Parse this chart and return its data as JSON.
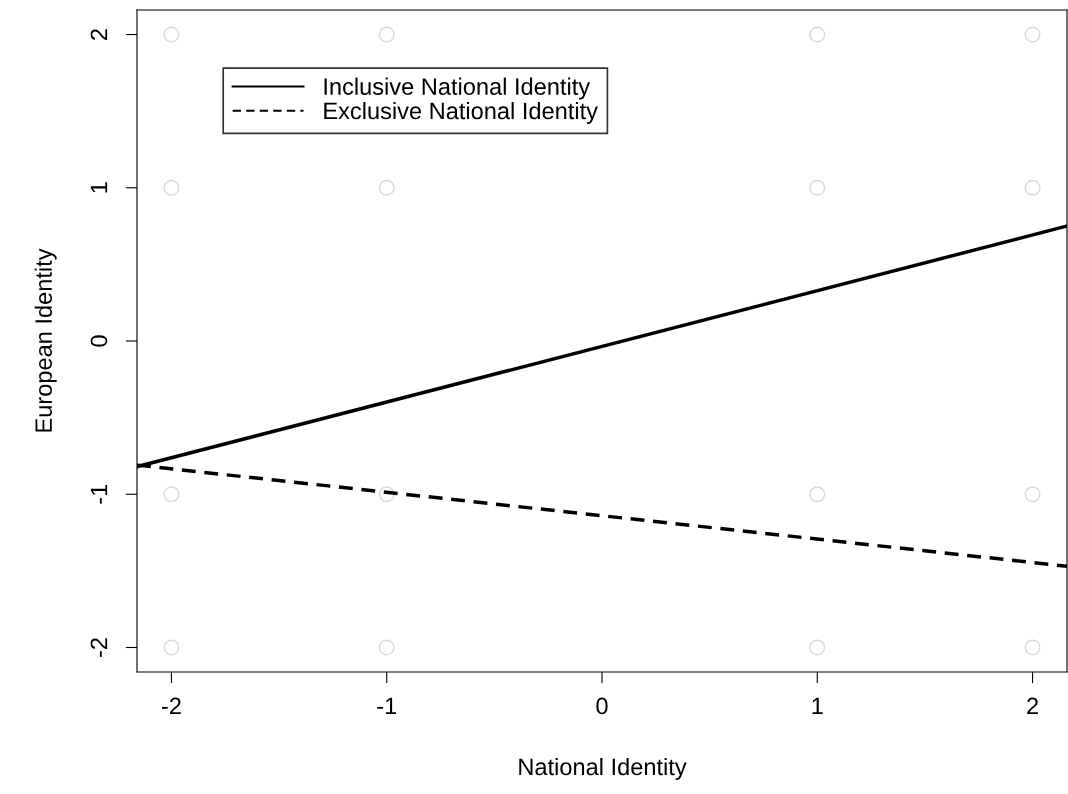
{
  "chart_data": {
    "type": "line",
    "xlabel": "National Identity",
    "ylabel": "European Identity",
    "xlim": [
      -2.16,
      2.16
    ],
    "ylim": [
      -2.16,
      2.16
    ],
    "xticks": [
      -2,
      -1,
      0,
      1,
      2
    ],
    "yticks": [
      -2,
      -1,
      0,
      1,
      2
    ],
    "grid": false,
    "legend": "top left",
    "series": [
      {
        "type": "scatter",
        "color": "#d9d9d9",
        "marker": "circle",
        "x": [
          -2,
          -1,
          1,
          2,
          -2,
          -1,
          1,
          2,
          -2,
          -1,
          1,
          2,
          -2,
          -1,
          1,
          2
        ],
        "values": [
          2,
          2,
          2,
          2,
          1,
          1,
          1,
          1,
          -1,
          -1,
          -1,
          -1,
          -2,
          -2,
          -2,
          -2
        ]
      },
      {
        "name": "Inclusive National Identity",
        "color": "#000000",
        "line_style": "solid",
        "x": [
          -2.16,
          2.16
        ],
        "values": [
          -0.82,
          0.75
        ]
      },
      {
        "name": "Exclusive National Identity",
        "color": "#000000",
        "line_style": "dashed",
        "x": [
          -2.16,
          2.16
        ],
        "values": [
          -0.81,
          -1.47
        ]
      }
    ]
  }
}
